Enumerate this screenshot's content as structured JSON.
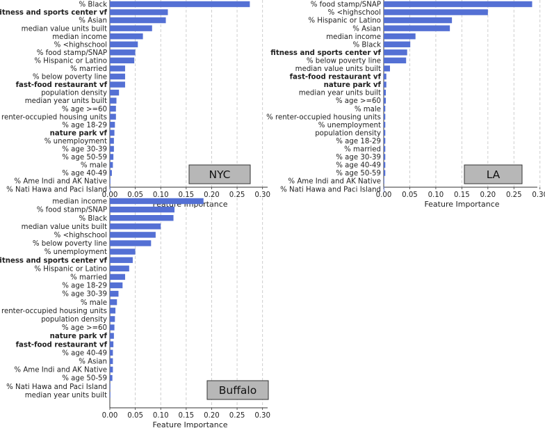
{
  "colors": {
    "bar": "#5470d4",
    "grid": "#c8c8c8",
    "axis": "#333333",
    "label_box_fill": "#b7b7b7",
    "label_box_stroke": "#333333"
  },
  "chart_data": [
    {
      "type": "bar",
      "orientation": "horizontal",
      "city_label": "NYC",
      "xlabel": "Feature Importance",
      "xlim": [
        0,
        0.31
      ],
      "xticks": [
        "0.00",
        "0.05",
        "0.10",
        "0.15",
        "0.20",
        "0.25",
        "0.30"
      ],
      "grid": "vertical dashed",
      "categories": [
        "% Black",
        "fitness and sports center vf",
        "% Asian",
        "median value units built",
        "median income",
        "% <highschool",
        "% food stamp/SNAP",
        "% Hispanic or Latino",
        "% married",
        "% below poverty line",
        "fast-food restaurant vf",
        "population density",
        "median year units built",
        "% age >=60",
        "% renter-occupied housing units",
        "% age 18-29",
        "nature park vf",
        "% unemployment",
        "% age 30-39",
        "% age 50-59",
        "% male",
        "% age 40-49",
        "% Ame Indi and AK Native",
        "% Nati Hawa and Paci Island"
      ],
      "values": [
        0.275,
        0.114,
        0.11,
        0.083,
        0.065,
        0.055,
        0.05,
        0.048,
        0.03,
        0.03,
        0.03,
        0.018,
        0.013,
        0.012,
        0.012,
        0.01,
        0.009,
        0.008,
        0.008,
        0.007,
        0.006,
        0.004,
        0.001,
        0.0005
      ],
      "bold_categories": [
        "fitness and sports center vf",
        "fast-food restaurant vf",
        "nature park vf"
      ]
    },
    {
      "type": "bar",
      "orientation": "horizontal",
      "city_label": "LA",
      "xlabel": "Feature Importance",
      "xlim": [
        0,
        0.295
      ],
      "xticks": [
        "0.00",
        "0.05",
        "0.10",
        "0.15",
        "0.20",
        "0.25",
        "0.30"
      ],
      "grid": "vertical dashed",
      "categories": [
        "% food stamp/SNAP",
        "% <highschool",
        "% Hispanic or Latino",
        "% Asian",
        "median income",
        "% Black",
        "fitness and sports center vf",
        "% below poverty line",
        "median value units built",
        "fast-food restaurant vf",
        "nature park vf",
        "median year units built",
        "% age >=60",
        "% male",
        "% renter-occupied housing units",
        "% unemployment",
        "population density",
        "% age 18-29",
        "% married",
        "% age 30-39",
        "% age 40-49",
        "% age 50-59",
        "% Ame Indi and AK Native",
        "% Nati Hawa and Paci Island"
      ],
      "values": [
        0.285,
        0.2,
        0.131,
        0.127,
        0.061,
        0.051,
        0.045,
        0.043,
        0.012,
        0.005,
        0.005,
        0.004,
        0.004,
        0.003,
        0.003,
        0.003,
        0.003,
        0.003,
        0.003,
        0.003,
        0.003,
        0.003,
        0.0005,
        0.0005
      ],
      "bold_categories": [
        "fitness and sports center vf",
        "fast-food restaurant vf",
        "nature park vf"
      ]
    },
    {
      "type": "bar",
      "orientation": "horizontal",
      "city_label": "Buffalo",
      "xlabel": "Feature Importance",
      "xlim": [
        0,
        0.31
      ],
      "xticks": [
        "0.00",
        "0.05",
        "0.10",
        "0.15",
        "0.20",
        "0.25",
        "0.30"
      ],
      "grid": "vertical dashed",
      "categories": [
        "median income",
        "% food stamp/SNAP",
        "% Black",
        "median value units built",
        "% <highschool",
        "% below poverty line",
        "% unemployment",
        "fitness and sports center vf",
        "% Hispanic or Latino",
        "% married",
        "% age 18-29",
        "% age 30-39",
        "% male",
        "% renter-occupied housing units",
        "population density",
        "% age >=60",
        "nature park vf",
        "fast-food restaurant vf",
        "% age 40-49",
        "% Asian",
        "% Ame Indi and AK Native",
        "% age 50-59",
        "% Nati Hawa and Paci Island",
        "median year units built"
      ],
      "values": [
        0.184,
        0.127,
        0.125,
        0.1,
        0.09,
        0.081,
        0.05,
        0.045,
        0.038,
        0.03,
        0.025,
        0.017,
        0.014,
        0.011,
        0.01,
        0.009,
        0.008,
        0.007,
        0.006,
        0.006,
        0.006,
        0.005,
        0.001,
        0.0005
      ],
      "bold_categories": [
        "fitness and sports center vf",
        "fast-food restaurant vf",
        "nature park vf"
      ]
    }
  ]
}
